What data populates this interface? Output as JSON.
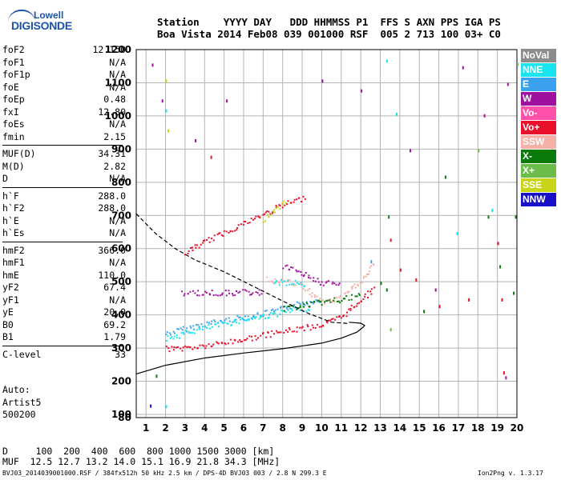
{
  "logo": {
    "line1": "Lowell",
    "line2": "DIGISONDE"
  },
  "header": {
    "line1": "Station    YYYY DAY   DDD HHMMSS P1  FFS S AXN PPS IGA PS",
    "line2": "Boa Vista 2014 Feb08 039 001000 RSF  005 2 713 100 03+ C0"
  },
  "params": [
    {
      "name": "foF2",
      "value": "12.150"
    },
    {
      "name": "foF1",
      "value": "N/A"
    },
    {
      "name": "foF1p",
      "value": "N/A"
    },
    {
      "name": "foE",
      "value": "N/A"
    },
    {
      "name": "foEp",
      "value": "0.48"
    },
    {
      "name": "fxI",
      "value": "12.80"
    },
    {
      "name": "foEs",
      "value": "N/A"
    },
    {
      "name": "fmin",
      "value": "2.15"
    },
    {
      "name": "MUF(D)",
      "value": "34.31"
    },
    {
      "name": "M(D)",
      "value": "2.82"
    },
    {
      "name": "D",
      "value": "N/A"
    },
    {
      "name": "h`F",
      "value": "288.0"
    },
    {
      "name": "h`F2",
      "value": "288.0"
    },
    {
      "name": "h`E",
      "value": "N/A"
    },
    {
      "name": "h`Es",
      "value": "N/A"
    },
    {
      "name": "hmF2",
      "value": "366.0"
    },
    {
      "name": "hmF1",
      "value": "N/A"
    },
    {
      "name": "hmE",
      "value": "110.0"
    },
    {
      "name": "yF2",
      "value": "67.4"
    },
    {
      "name": "yF1",
      "value": "N/A"
    },
    {
      "name": "yE",
      "value": "20.0"
    },
    {
      "name": "B0",
      "value": "69.2"
    },
    {
      "name": "B1",
      "value": "1.79"
    },
    {
      "name": "C-level",
      "value": "33"
    }
  ],
  "auto": {
    "line1": "Auto:",
    "line2": "Artist5",
    "line3": "500200"
  },
  "legend": [
    {
      "label": "NoVal",
      "color": "#8c8c8c"
    },
    {
      "label": "NNE",
      "color": "#19e4f0"
    },
    {
      "label": "E",
      "color": "#3aa2ef"
    },
    {
      "label": "W",
      "color": "#a0109e"
    },
    {
      "label": "Vo-",
      "color": "#ff50aa"
    },
    {
      "label": "Vo+",
      "color": "#e8102a"
    },
    {
      "label": "SSW",
      "color": "#f5b0a8"
    },
    {
      "label": "X-",
      "color": "#0a7a0a"
    },
    {
      "label": "X+",
      "color": "#6cbc4c"
    },
    {
      "label": "SSE",
      "color": "#c8d418"
    },
    {
      "label": "NNW",
      "color": "#1810c8"
    }
  ],
  "footer": {
    "line1": "D     100  200  400  600  800 1000 1500 3000 [km]",
    "line2": "MUF  12.5 12.7 13.2 14.0 15.1 16.9 21.8 34.3 [MHz]",
    "line3": "BVJ03_2014039001000.RSF / 384fx512h 50 kHz 2.5 km / DPS-4D BVJ03 003 / 2.8 N 299.3 E",
    "version": "Ion2Png v. 1.3.17"
  },
  "chart_data": {
    "type": "scatter",
    "xlim": [
      0.5,
      20
    ],
    "ylim": [
      80,
      1200
    ],
    "x_ticks": [
      1,
      2,
      3,
      4,
      5,
      6,
      7,
      8,
      9,
      10,
      11,
      12,
      13,
      14,
      15,
      16,
      17,
      18,
      19,
      20
    ],
    "y_ticks": [
      80,
      100,
      200,
      300,
      400,
      500,
      600,
      700,
      800,
      900,
      1000,
      1100,
      1200
    ],
    "grid": true,
    "profile_solid": [
      [
        0.5,
        222
      ],
      [
        2,
        248
      ],
      [
        4,
        270
      ],
      [
        6,
        285
      ],
      [
        8,
        298
      ],
      [
        10,
        315
      ],
      [
        11,
        330
      ],
      [
        11.8,
        348
      ],
      [
        12.1,
        362
      ],
      [
        12.2,
        368
      ],
      [
        12,
        375
      ],
      [
        11.4,
        378
      ]
    ],
    "profile_dashed": [
      [
        0.5,
        705
      ],
      [
        1.5,
        645
      ],
      [
        2.5,
        600
      ],
      [
        3.5,
        566
      ],
      [
        5,
        530
      ],
      [
        6.5,
        486
      ],
      [
        8,
        442
      ],
      [
        9.3,
        405
      ],
      [
        10.5,
        378
      ],
      [
        11.4,
        374
      ]
    ],
    "traces": [
      {
        "series": "E",
        "points": [
          [
            2,
            345
          ],
          [
            3,
            360
          ],
          [
            4,
            375
          ],
          [
            5,
            385
          ],
          [
            6,
            395
          ],
          [
            7,
            405
          ],
          [
            8,
            420
          ],
          [
            9,
            438
          ],
          [
            10,
            450
          ]
        ]
      },
      {
        "series": "NNE",
        "points": [
          [
            2,
            330
          ],
          [
            2.5,
            338
          ],
          [
            3.2,
            350
          ],
          [
            4,
            362
          ],
          [
            5,
            375
          ],
          [
            6,
            388
          ],
          [
            7,
            398
          ],
          [
            8.5,
            415
          ],
          [
            9.5,
            425
          ]
        ]
      },
      {
        "series": "Vo+",
        "points": [
          [
            2,
            300
          ],
          [
            3,
            302
          ],
          [
            4,
            308
          ],
          [
            5,
            318
          ],
          [
            6,
            328
          ],
          [
            7,
            340
          ],
          [
            8,
            352
          ],
          [
            9,
            362
          ],
          [
            10,
            372
          ],
          [
            11,
            395
          ],
          [
            12,
            450
          ],
          [
            12.7,
            482
          ]
        ]
      },
      {
        "series": "Vo+",
        "points": [
          [
            3,
            590
          ],
          [
            4,
            622
          ],
          [
            5,
            650
          ],
          [
            6,
            678
          ],
          [
            7,
            705
          ],
          [
            8,
            733
          ],
          [
            9.2,
            757
          ]
        ]
      },
      {
        "series": "SSE",
        "points": [
          [
            7,
            690
          ],
          [
            7.6,
            718
          ],
          [
            8.2,
            746
          ]
        ]
      },
      {
        "series": "W",
        "points": [
          [
            2.8,
            468
          ],
          [
            4,
            468
          ],
          [
            5,
            468
          ],
          [
            6,
            470
          ],
          [
            7,
            470
          ]
        ]
      },
      {
        "series": "SSW",
        "points": [
          [
            7.2,
            508
          ],
          [
            8,
            505
          ],
          [
            9,
            488
          ],
          [
            10,
            440
          ],
          [
            11,
            452
          ],
          [
            12,
            505
          ],
          [
            12.7,
            555
          ]
        ]
      },
      {
        "series": "NNE",
        "points": [
          [
            7.5,
            500
          ],
          [
            8.5,
            498
          ],
          [
            9.2,
            494
          ]
        ]
      },
      {
        "series": "W",
        "points": [
          [
            8,
            545
          ],
          [
            8.6,
            540
          ],
          [
            10,
            498
          ],
          [
            11,
            495
          ]
        ]
      },
      {
        "series": "X-",
        "points": [
          [
            8,
            420
          ],
          [
            9,
            430
          ],
          [
            10,
            440
          ],
          [
            11,
            448
          ],
          [
            12,
            460
          ]
        ]
      }
    ],
    "scatter_points": [
      {
        "x": 1.3,
        "y": 1158,
        "series": "W"
      },
      {
        "x": 1.8,
        "y": 1050,
        "series": "W"
      },
      {
        "x": 2,
        "y": 1110,
        "series": "SSE"
      },
      {
        "x": 2,
        "y": 1020,
        "series": "NNE"
      },
      {
        "x": 2.1,
        "y": 960,
        "series": "SSE"
      },
      {
        "x": 1.2,
        "y": 130,
        "series": "NNW"
      },
      {
        "x": 2,
        "y": 128,
        "series": "NNE"
      },
      {
        "x": 1.5,
        "y": 220,
        "series": "X-"
      },
      {
        "x": 3.5,
        "y": 930,
        "series": "W"
      },
      {
        "x": 4.3,
        "y": 880,
        "series": "Vo+"
      },
      {
        "x": 5.1,
        "y": 1050,
        "series": "W"
      },
      {
        "x": 10,
        "y": 1110,
        "series": "W"
      },
      {
        "x": 12,
        "y": 1080,
        "series": "W"
      },
      {
        "x": 13.3,
        "y": 1170,
        "series": "NNE"
      },
      {
        "x": 13.4,
        "y": 700,
        "series": "X-"
      },
      {
        "x": 13.5,
        "y": 630,
        "series": "Vo+"
      },
      {
        "x": 13.3,
        "y": 480,
        "series": "X-"
      },
      {
        "x": 13.5,
        "y": 360,
        "series": "X+"
      },
      {
        "x": 13.8,
        "y": 1010,
        "series": "NNE"
      },
      {
        "x": 14.5,
        "y": 900,
        "series": "W"
      },
      {
        "x": 14.8,
        "y": 510,
        "series": "Vo+"
      },
      {
        "x": 15.2,
        "y": 415,
        "series": "X-"
      },
      {
        "x": 15.8,
        "y": 480,
        "series": "W"
      },
      {
        "x": 16,
        "y": 430,
        "series": "Vo+"
      },
      {
        "x": 16.3,
        "y": 820,
        "series": "X-"
      },
      {
        "x": 16.9,
        "y": 650,
        "series": "NNE"
      },
      {
        "x": 17.2,
        "y": 1150,
        "series": "W"
      },
      {
        "x": 17.5,
        "y": 450,
        "series": "Vo+"
      },
      {
        "x": 18,
        "y": 900,
        "series": "X+"
      },
      {
        "x": 18.3,
        "y": 1005,
        "series": "W"
      },
      {
        "x": 18.5,
        "y": 700,
        "series": "X-"
      },
      {
        "x": 18.7,
        "y": 720,
        "series": "NNE"
      },
      {
        "x": 19,
        "y": 620,
        "series": "Vo+"
      },
      {
        "x": 19.1,
        "y": 550,
        "series": "X-"
      },
      {
        "x": 19.2,
        "y": 450,
        "series": "Vo+"
      },
      {
        "x": 19.3,
        "y": 230,
        "series": "Vo+"
      },
      {
        "x": 19.4,
        "y": 215,
        "series": "W"
      },
      {
        "x": 19.8,
        "y": 470,
        "series": "X-"
      },
      {
        "x": 19.9,
        "y": 700,
        "series": "X-"
      },
      {
        "x": 19.5,
        "y": 1100,
        "series": "W"
      },
      {
        "x": 20,
        "y": 1160,
        "series": "X+"
      },
      {
        "x": 12.5,
        "y": 565,
        "series": "E"
      },
      {
        "x": 14,
        "y": 540,
        "series": "Vo+"
      },
      {
        "x": 13,
        "y": 500,
        "series": "X-"
      }
    ]
  }
}
